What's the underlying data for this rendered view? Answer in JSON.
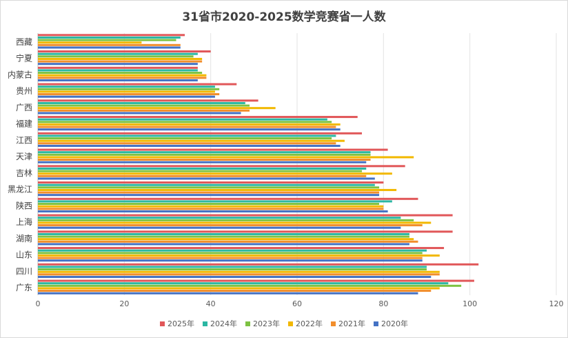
{
  "chart_data": {
    "type": "bar",
    "orientation": "horizontal",
    "title": "31省市2020-2025数学竞赛省一人数",
    "xlim": [
      0,
      120
    ],
    "x_ticks": [
      "0",
      "20",
      "40",
      "60",
      "80",
      "100",
      "120"
    ],
    "grid": true,
    "legend_position": "bottom",
    "categories_shown": [
      "西藏",
      "宁夏",
      "内蒙古",
      "贵州",
      "广西",
      "福建",
      "江西",
      "天津",
      "吉林",
      "黑龙江",
      "陕西",
      "上海",
      "湖南",
      "山东",
      "四川",
      "广东"
    ],
    "series": [
      {
        "name": "2025年",
        "color": "#e15759",
        "values": [
          34,
          40,
          37,
          46,
          51,
          74,
          75,
          81,
          85,
          80,
          88,
          96,
          96,
          94,
          102,
          101
        ]
      },
      {
        "name": "2024年",
        "color": "#2bb7a3",
        "values": [
          33,
          37,
          37,
          41,
          48,
          67,
          69,
          77,
          76,
          78,
          82,
          84,
          86,
          90,
          90,
          95
        ]
      },
      {
        "name": "2023年",
        "color": "#7dc242",
        "values": [
          32,
          36,
          38,
          42,
          49,
          68,
          68,
          77,
          75,
          79,
          79,
          87,
          86,
          89,
          90,
          98
        ]
      },
      {
        "name": "2022年",
        "color": "#f2b800",
        "values": [
          24,
          38,
          39,
          41,
          55,
          70,
          71,
          87,
          82,
          83,
          80,
          91,
          87,
          93,
          93,
          93
        ]
      },
      {
        "name": "2021年",
        "color": "#f28e2b",
        "values": [
          33,
          38,
          39,
          42,
          49,
          69,
          69,
          77,
          76,
          79,
          80,
          89,
          88,
          89,
          93,
          91
        ]
      },
      {
        "name": "2020年",
        "color": "#4472c4",
        "values": [
          33,
          37,
          37,
          41,
          47,
          70,
          70,
          76,
          78,
          79,
          81,
          84,
          86,
          89,
          91,
          88
        ]
      }
    ]
  }
}
